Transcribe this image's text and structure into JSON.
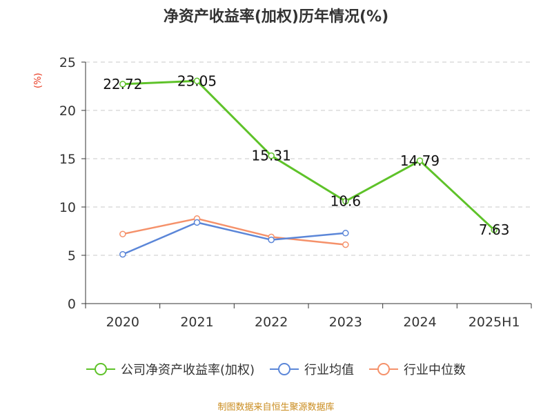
{
  "header": {
    "title": "净资产收益率(加权)历年情况(%)",
    "unit": "(%)"
  },
  "footer": {
    "source": "制图数据来自恒生聚源数据库"
  },
  "chart_data": {
    "type": "line",
    "categories": [
      "2020",
      "2021",
      "2022",
      "2023",
      "2024",
      "2025H1"
    ],
    "ylim": [
      0,
      25
    ],
    "yticks": [
      0,
      5,
      10,
      15,
      20,
      25
    ],
    "grid": true,
    "legend_position": "bottom",
    "series": [
      {
        "name": "公司净资产收益率(加权)",
        "color": "#5ec229",
        "values": [
          22.72,
          23.05,
          15.31,
          10.6,
          14.79,
          7.63
        ],
        "labels": [
          "22.72",
          "23.05",
          "15.31",
          "10.6",
          "14.79",
          "7.63"
        ]
      },
      {
        "name": "行业均值",
        "color": "#5b86d8",
        "values": [
          5.1,
          8.4,
          6.6,
          7.3,
          null,
          null
        ]
      },
      {
        "name": "行业中位数",
        "color": "#f5916a",
        "values": [
          7.2,
          8.8,
          6.9,
          6.1,
          null,
          null
        ]
      }
    ]
  }
}
